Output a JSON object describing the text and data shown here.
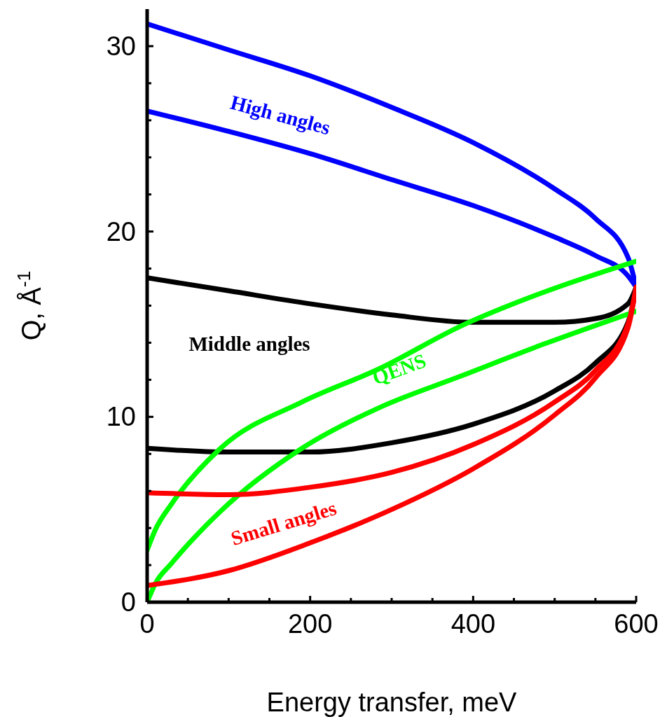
{
  "chart_data": {
    "type": "line",
    "xlabel": "Energy transfer, meV",
    "ylabel": "Q, Å$^{-1}$",
    "xlim": [
      0,
      600
    ],
    "ylim": [
      0,
      32
    ],
    "xticks": [
      0,
      {
        "value": 50,
        "label": null
      },
      {
        "value": 100,
        "label": null
      },
      {
        "value": 150,
        "label": null
      },
      200,
      {
        "value": 250,
        "label": null
      },
      {
        "value": 300,
        "label": null
      },
      {
        "value": 350,
        "label": null
      },
      400,
      {
        "value": 450,
        "label": null
      },
      {
        "value": 500,
        "label": null
      },
      {
        "value": 550,
        "label": null
      },
      600
    ],
    "yticks": [
      0,
      {
        "value": 2,
        "label": null
      },
      {
        "value": 4,
        "label": null
      },
      {
        "value": 6,
        "label": null
      },
      {
        "value": 8,
        "label": null
      },
      10,
      {
        "value": 12,
        "label": null
      },
      {
        "value": 14,
        "label": null
      },
      {
        "value": 16,
        "label": null
      },
      {
        "value": 18,
        "label": null
      },
      20,
      {
        "value": 22,
        "label": null
      },
      {
        "value": 24,
        "label": null
      },
      {
        "value": 26,
        "label": null
      },
      {
        "value": 28,
        "label": null
      },
      30
    ],
    "marker": "none",
    "line_style": "solid",
    "series": [
      {
        "color": "#0000ff",
        "x": [
          0,
          100,
          200,
          300,
          400,
          500,
          550,
          590,
          600
        ],
        "values": [
          31.2,
          29.8,
          28.4,
          26.7,
          24.8,
          22.3,
          20.7,
          18.6,
          17.0
        ]
      },
      {
        "color": "#0000ff",
        "x": [
          0,
          100,
          200,
          300,
          400,
          500,
          550,
          590,
          600
        ],
        "values": [
          26.5,
          25.4,
          24.2,
          22.8,
          21.4,
          19.7,
          18.7,
          17.6,
          17.0
        ]
      },
      {
        "color": "#000000",
        "x": [
          0,
          100,
          200,
          300,
          400,
          500,
          550,
          590,
          600
        ],
        "values": [
          17.5,
          16.8,
          16.1,
          15.5,
          15.1,
          15.1,
          15.3,
          16.1,
          17.0
        ]
      },
      {
        "color": "#000000",
        "x": [
          0,
          100,
          200,
          300,
          400,
          500,
          550,
          590,
          600
        ],
        "values": [
          8.3,
          8.1,
          8.1,
          8.6,
          9.6,
          11.4,
          12.9,
          15.1,
          17.0
        ]
      },
      {
        "color": "#00ff00",
        "x": [
          0,
          10,
          30,
          90,
          190,
          285,
          385,
          485,
          600
        ],
        "values": [
          2.8,
          3.9,
          5.3,
          8.3,
          10.8,
          12.6,
          14.9,
          16.7,
          18.4
        ]
      },
      {
        "color": "#00ff00",
        "x": [
          0,
          10,
          30,
          90,
          190,
          285,
          385,
          485,
          600
        ],
        "values": [
          0,
          1.0,
          2.1,
          4.9,
          8.3,
          10.5,
          12.2,
          13.9,
          15.7
        ]
      },
      {
        "color": "#ff0000",
        "x": [
          0,
          100,
          200,
          300,
          400,
          500,
          550,
          590,
          600
        ],
        "values": [
          5.9,
          5.8,
          6.2,
          7.0,
          8.5,
          10.8,
          12.5,
          15.0,
          17.0
        ]
      },
      {
        "color": "#ff0000",
        "x": [
          0,
          100,
          200,
          300,
          400,
          500,
          550,
          590,
          600
        ],
        "values": [
          0.9,
          1.7,
          3.2,
          5.0,
          7.2,
          10.1,
          12.1,
          14.8,
          17.0
        ]
      }
    ],
    "annotations": [
      "High angles",
      "Middle angles",
      "QENS",
      "Small angles"
    ]
  }
}
